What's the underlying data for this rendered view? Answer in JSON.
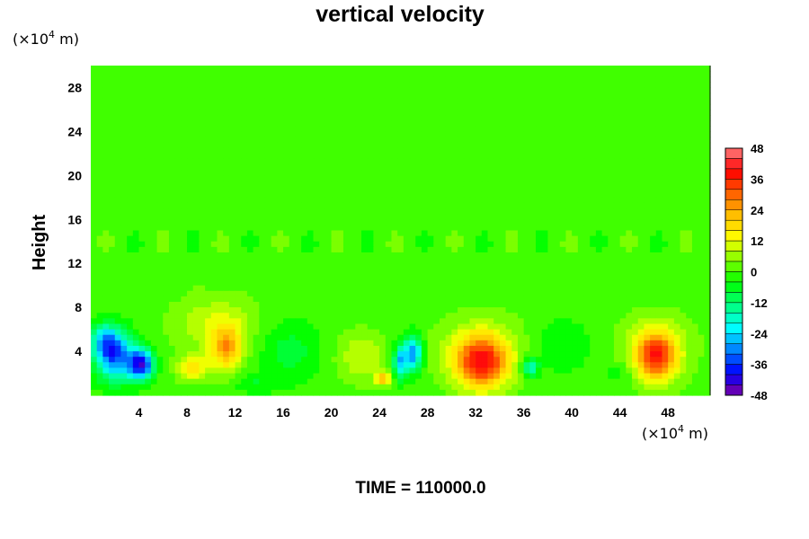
{
  "chart_data": {
    "type": "heatmap",
    "title": "vertical velocity",
    "ylabel": "Height",
    "xlabel": "",
    "x_unit": {
      "prefix": "(×10",
      "exp": "4",
      "suffix": " m)"
    },
    "y_unit": {
      "prefix": "(×10",
      "exp": "4",
      "suffix": " m)"
    },
    "xlim": [
      0,
      51.5
    ],
    "ylim": [
      0,
      30
    ],
    "xticks": [
      4,
      8,
      12,
      16,
      20,
      24,
      28,
      32,
      36,
      40,
      44,
      48
    ],
    "yticks": [
      4,
      8,
      12,
      16,
      20,
      24,
      28
    ],
    "colorbar": {
      "ticks": [
        48,
        36,
        24,
        12,
        0,
        -12,
        -24,
        -36,
        -48
      ],
      "range": [
        -48,
        48
      ],
      "step": 4
    },
    "features": [
      {
        "x": 2.0,
        "y": 3.5,
        "value": -32,
        "sx": 1.6,
        "sy": 2.2
      },
      {
        "x": 4.2,
        "y": 2.8,
        "value": -40,
        "sx": 1.0,
        "sy": 1.4
      },
      {
        "x": 1.2,
        "y": 5.0,
        "value": -18,
        "sx": 1.2,
        "sy": 1.5
      },
      {
        "x": 11.3,
        "y": 4.2,
        "value": 22,
        "sx": 1.3,
        "sy": 2.0
      },
      {
        "x": 8.5,
        "y": 2.5,
        "value": 16,
        "sx": 1.3,
        "sy": 1.2
      },
      {
        "x": 10.5,
        "y": 6.5,
        "value": 10,
        "sx": 3.5,
        "sy": 2.5
      },
      {
        "x": 16.5,
        "y": 4.0,
        "value": -8,
        "sx": 2.5,
        "sy": 2.8
      },
      {
        "x": 22.5,
        "y": 3.5,
        "value": 10,
        "sx": 2.0,
        "sy": 2.2
      },
      {
        "x": 24.3,
        "y": 1.5,
        "value": 22,
        "sx": 0.6,
        "sy": 0.6
      },
      {
        "x": 25.7,
        "y": 3.0,
        "value": -24,
        "sx": 0.6,
        "sy": 1.5
      },
      {
        "x": 26.8,
        "y": 3.8,
        "value": -30,
        "sx": 0.8,
        "sy": 1.6
      },
      {
        "x": 32.5,
        "y": 3.0,
        "value": 34,
        "sx": 2.2,
        "sy": 2.4
      },
      {
        "x": 32.5,
        "y": 4.2,
        "value": 8,
        "sx": 4.0,
        "sy": 3.2
      },
      {
        "x": 36.5,
        "y": 2.5,
        "value": -20,
        "sx": 0.7,
        "sy": 0.8
      },
      {
        "x": 39.0,
        "y": 4.5,
        "value": -6,
        "sx": 2.5,
        "sy": 2.5
      },
      {
        "x": 47.0,
        "y": 3.5,
        "value": 32,
        "sx": 1.7,
        "sy": 2.2
      },
      {
        "x": 47.0,
        "y": 4.5,
        "value": 8,
        "sx": 3.2,
        "sy": 3.0
      },
      {
        "x": 13.5,
        "y": 1.0,
        "value": -6,
        "sx": 1.5,
        "sy": 0.8
      },
      {
        "x": 44.0,
        "y": 2.0,
        "value": -5,
        "sx": 1.5,
        "sy": 1.0
      }
    ]
  },
  "time_label": "TIME = 110000.0",
  "colors": {
    "scale": [
      "#8000a0",
      "#0000ff",
      "#0080ff",
      "#00ffff",
      "#00ff80",
      "#00ff00",
      "#80ff00",
      "#ffff00",
      "#ffc000",
      "#ff6000",
      "#ff0000",
      "#ff8080"
    ]
  }
}
